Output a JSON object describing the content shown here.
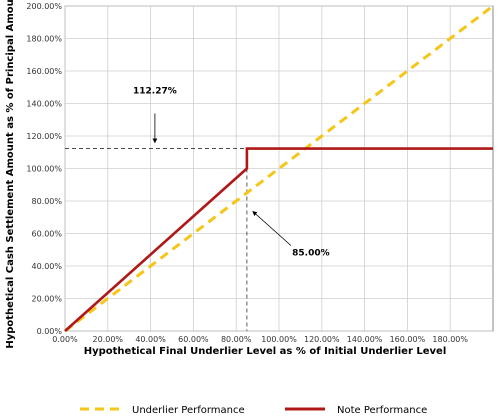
{
  "chart_data": {
    "type": "line",
    "title": "",
    "xlabel": "Hypothetical Final Underlier Level as % of Initial Underlier Level",
    "ylabel": "Hypothetical Cash Settlement Amount as % of Principal Amount",
    "xlim": [
      0,
      200
    ],
    "ylim": [
      0,
      200
    ],
    "x_ticks": [
      "0.00%",
      "20.00%",
      "40.00%",
      "60.00%",
      "80.00%",
      "100.00%",
      "120.00%",
      "140.00%",
      "160.00%",
      "180.00%"
    ],
    "y_ticks": [
      "0.00%",
      "20.00%",
      "40.00%",
      "60.00%",
      "80.00%",
      "100.00%",
      "120.00%",
      "140.00%",
      "160.00%",
      "180.00%",
      "200.00%"
    ],
    "grid": true,
    "legend_position": "bottom",
    "series": [
      {
        "name": "Underlier Performance",
        "color": "#f5c518",
        "style": "dashed",
        "x": [
          0,
          200
        ],
        "y": [
          0,
          200
        ]
      },
      {
        "name": "Note Performance",
        "color": "#b01818",
        "style": "solid",
        "x": [
          0,
          85,
          85,
          200
        ],
        "y": [
          0,
          100,
          112.27,
          112.27
        ]
      }
    ],
    "annotations": [
      {
        "label": "112.27%",
        "x": 85,
        "y": 112.27
      },
      {
        "label": "85.00%",
        "x": 85,
        "y": 100
      }
    ]
  }
}
